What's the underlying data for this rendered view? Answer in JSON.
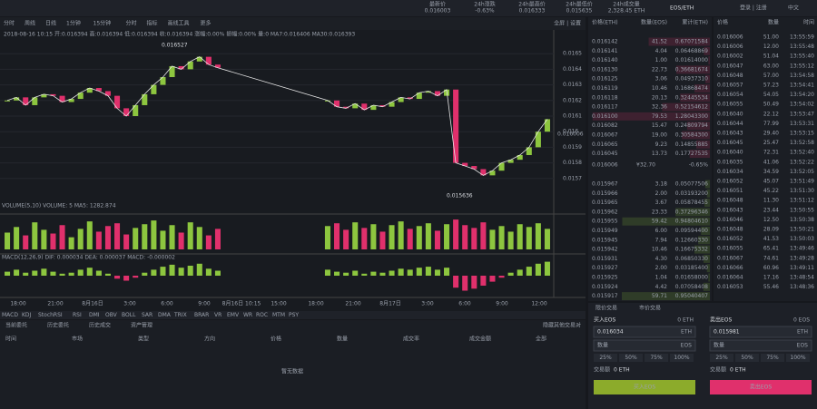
{
  "header": {
    "stats": [
      {
        "label": "最新价",
        "value": "0.016003"
      },
      {
        "label": "24h涨跌",
        "value": "-0.63%"
      },
      {
        "label": "24h最高价",
        "value": "0.016333"
      },
      {
        "label": "24h最低价",
        "value": "0.015635"
      },
      {
        "label": "24h成交量",
        "value": "2,328.45 ETH"
      }
    ],
    "pair": "EOS/ETH",
    "login": "登录 | 注册",
    "lang": "中文"
  },
  "toolbar": {
    "items": [
      "分时",
      "周线",
      "日线",
      "1分钟",
      "15分钟",
      "分时",
      "指标",
      "画线工具",
      "更多"
    ],
    "right": "全屏 | 设置"
  },
  "chart_data": {
    "type": "candlestick",
    "info": "2018-08-16 10:15 开:0.016394 高:0.016394 低:0.016394 收:0.016394 涨幅:0.00% 振幅:0.00% 量:0 MA7:0.016406 MA30:0.016393",
    "closes": [
      0.0162,
      0.01622,
      0.01617,
      0.01622,
      0.01624,
      0.01623,
      0.01619,
      0.01621,
      0.01625,
      0.01628,
      0.01626,
      0.01623,
      0.01615,
      0.0161,
      0.01617,
      0.01624,
      0.0163,
      0.01635,
      0.01642,
      0.0164,
      0.01645,
      0.01648,
      0.01643,
      0.01641,
      null,
      null,
      null,
      null,
      null,
      null,
      null,
      null,
      null,
      null,
      null,
      0.0162,
      0.01616,
      0.01615,
      0.01618,
      0.01614,
      0.01617,
      0.01616,
      0.01619,
      0.01622,
      0.01621,
      0.01625,
      0.01626,
      0.01623,
      0.01627,
      0.0158,
      0.01578,
      0.01576,
      0.01572,
      0.01575,
      0.0158,
      0.01582,
      0.01585,
      0.0159,
      0.016,
      0.01608
    ],
    "volumes": [
      1800,
      2400,
      1500,
      2900,
      2100,
      1700,
      2600,
      1300,
      2200,
      3000,
      1900,
      2500,
      2800,
      1600,
      2300,
      2700,
      3100,
      2000,
      2600,
      1800,
      2900,
      2400,
      1500,
      2200,
      null,
      null,
      null,
      null,
      null,
      null,
      null,
      null,
      null,
      null,
      null,
      2500,
      2800,
      2100,
      2900,
      2300,
      2700,
      1900,
      2600,
      3000,
      2200,
      2500,
      2800,
      2000,
      2700,
      3200,
      2600,
      2300,
      2900,
      2100,
      2500,
      1900,
      2700,
      2400,
      2800,
      2200
    ],
    "macd": [
      4e-05,
      6e-05,
      3e-05,
      5e-05,
      7e-05,
      4e-05,
      2e-05,
      3e-05,
      6e-05,
      8e-05,
      5e-05,
      2e-05,
      -3e-05,
      -5e-05,
      -2e-05,
      3e-05,
      6e-05,
      9e-05,
      0.00011,
      8e-05,
      0.0001,
      0.00012,
      7e-05,
      5e-05,
      null,
      null,
      null,
      null,
      null,
      null,
      null,
      null,
      null,
      null,
      null,
      6e-05,
      4e-05,
      3e-05,
      5e-05,
      2e-05,
      4e-05,
      3e-05,
      5e-05,
      7e-05,
      6e-05,
      8e-05,
      9e-05,
      6e-05,
      8e-05,
      -0.00012,
      -0.00015,
      -0.00013,
      -0.0001,
      -6e-05,
      -2e-05,
      3e-05,
      6e-05,
      9e-05,
      0.00012,
      0.00014
    ],
    "ylim": [
      0.0156,
      0.0166
    ],
    "yticks": [
      0.0157,
      0.0158,
      0.0159,
      0.016,
      0.0161,
      0.0162,
      0.0163,
      0.0164,
      0.0165
    ],
    "volume_ylim": [
      0,
      3500
    ],
    "macd_ylim": [
      -0.0002,
      0.0002
    ],
    "up_color": "#8dc63f",
    "down_color": "#e0306c",
    "line_color": "#e8e8e8",
    "high_label": "0.016527",
    "low_label": "0.015636",
    "last_label": "0.016006",
    "volume_info": "VOLUME(5,10) VOLUME: 5 MA5: 1282.874",
    "macd_info": "MACD(12,26,9) DIF: 0.000034 DEA: 0.000037 MACD: -0.000002",
    "x_labels": [
      "18:00",
      "21:00",
      "8月16日",
      "3:00",
      "6:00",
      "9:00",
      "8月16日 10:15",
      "15:00",
      "18:00",
      "21:00",
      "8月17日",
      "3:00",
      "6:00",
      "9:00",
      "12:00"
    ]
  },
  "indicators": [
    "MACD",
    "KDJ",
    "StochRSI",
    "RSI",
    "DMI",
    "OBV",
    "BOLL",
    "SAR",
    "DMA",
    "TRIX",
    "BRAR",
    "VR",
    "EMV",
    "WR",
    "ROC",
    "MTM",
    "PSY"
  ],
  "orders": {
    "tabs": [
      "当前委托",
      "历史委托",
      "历史成交",
      "资产管理"
    ],
    "hide": "隐藏其他交易对",
    "columns": [
      "时间",
      "市场",
      "类型",
      "方向",
      "价格",
      "数量",
      "成交率",
      "成交金额",
      "全部"
    ],
    "empty": "暂无数据"
  },
  "order_book": {
    "headers": [
      "价格(ETH)",
      "数量(EOS)",
      "累计(ETH)"
    ],
    "asks": [
      [
        "0.016142",
        "41.52",
        "0.67071584"
      ],
      [
        "0.016141",
        "4.04",
        "0.06468869"
      ],
      [
        "0.016140",
        "1.00",
        "0.01614000"
      ],
      [
        "0.016130",
        "22.73",
        "0.36681674"
      ],
      [
        "0.016125",
        "3.06",
        "0.04937310"
      ],
      [
        "0.016119",
        "10.46",
        "0.16868474"
      ],
      [
        "0.016118",
        "20.13",
        "0.32445534"
      ],
      [
        "0.016117",
        "32.36",
        "0.52154612"
      ],
      [
        "0.016100",
        "79.53",
        "1.28043300"
      ],
      [
        "0.016082",
        "15.47",
        "0.24809794"
      ],
      [
        "0.016067",
        "19.00",
        "0.30584300"
      ],
      [
        "0.016065",
        "9.23",
        "0.14855885"
      ],
      [
        "0.016045",
        "13.73",
        "0.17727535"
      ]
    ],
    "last_price": "0.016006",
    "last_cny": "¥32.70",
    "last_change": "-0.65%",
    "bids": [
      [
        "0.015967",
        "3.18",
        "0.05077506"
      ],
      [
        "0.015966",
        "2.00",
        "0.03193200"
      ],
      [
        "0.015965",
        "3.67",
        "0.05878455"
      ],
      [
        "0.015962",
        "23.33",
        "0.37296346"
      ],
      [
        "0.015955",
        "59.42",
        "0.94804610"
      ],
      [
        "0.015949",
        "6.00",
        "0.09594400"
      ],
      [
        "0.015945",
        "7.94",
        "0.12660330"
      ],
      [
        "0.015942",
        "10.46",
        "0.16675332"
      ],
      [
        "0.015931",
        "4.30",
        "0.06850330"
      ],
      [
        "0.015927",
        "2.00",
        "0.03185400"
      ],
      [
        "0.015925",
        "1.04",
        "0.01658000"
      ],
      [
        "0.015924",
        "4.42",
        "0.07058408"
      ],
      [
        "0.015917",
        "59.71",
        "0.95040407"
      ]
    ],
    "ask_color": "#e0306c",
    "bid_color": "#8dc63f"
  },
  "trades": {
    "headers": [
      "价格",
      "数量",
      "时间"
    ],
    "rows": [
      {
        "price": "0.016006",
        "amount": "51.00",
        "time": "13:55:59",
        "color": "#8dc63f"
      },
      {
        "price": "0.016006",
        "amount": "12.00",
        "time": "13:55:48",
        "color": "#8dc63f"
      },
      {
        "price": "0.016002",
        "amount": "51.04",
        "time": "13:55:40",
        "color": "#e0306c"
      },
      {
        "price": "0.016047",
        "amount": "63.00",
        "time": "13:55:12",
        "color": "#8dc63f"
      },
      {
        "price": "0.016048",
        "amount": "57.00",
        "time": "13:54:58",
        "color": "#8dc63f"
      },
      {
        "price": "0.016057",
        "amount": "57.23",
        "time": "13:54:41",
        "color": "#8dc63f"
      },
      {
        "price": "0.016054",
        "amount": "54.05",
        "time": "13:54:20",
        "color": "#e0306c"
      },
      {
        "price": "0.016055",
        "amount": "50.49",
        "time": "13:54:02",
        "color": "#8dc63f"
      },
      {
        "price": "0.016040",
        "amount": "22.12",
        "time": "13:53:47",
        "color": "#e0306c"
      },
      {
        "price": "0.016044",
        "amount": "77.99",
        "time": "13:53:31",
        "color": "#8dc63f"
      },
      {
        "price": "0.016043",
        "amount": "29.40",
        "time": "13:53:15",
        "color": "#e0306c"
      },
      {
        "price": "0.016045",
        "amount": "25.47",
        "time": "13:52:58",
        "color": "#8dc63f"
      },
      {
        "price": "0.016040",
        "amount": "72.31",
        "time": "13:52:40",
        "color": "#e0306c"
      },
      {
        "price": "0.016035",
        "amount": "41.06",
        "time": "13:52:22",
        "color": "#8dc63f"
      },
      {
        "price": "0.016034",
        "amount": "34.59",
        "time": "13:52:05",
        "color": "#e0306c"
      },
      {
        "price": "0.016052",
        "amount": "45.07",
        "time": "13:51:49",
        "color": "#e0306c"
      },
      {
        "price": "0.016051",
        "amount": "45.22",
        "time": "13:51:30",
        "color": "#8dc63f"
      },
      {
        "price": "0.016048",
        "amount": "11.30",
        "time": "13:51:12",
        "color": "#8dc63f"
      },
      {
        "price": "0.016043",
        "amount": "23.44",
        "time": "13:50:55",
        "color": "#8dc63f"
      },
      {
        "price": "0.016046",
        "amount": "12.50",
        "time": "13:50:38",
        "color": "#e0306c"
      },
      {
        "price": "0.016048",
        "amount": "28.09",
        "time": "13:50:21",
        "color": "#8dc63f"
      },
      {
        "price": "0.016052",
        "amount": "41.53",
        "time": "13:50:03",
        "color": "#e0306c"
      },
      {
        "price": "0.016055",
        "amount": "65.41",
        "time": "13:49:46",
        "color": "#8dc63f"
      },
      {
        "price": "0.016067",
        "amount": "74.61",
        "time": "13:49:28",
        "color": "#e0306c"
      },
      {
        "price": "0.016066",
        "amount": "60.96",
        "time": "13:49:11",
        "color": "#8dc63f"
      },
      {
        "price": "0.016064",
        "amount": "17.16",
        "time": "13:48:54",
        "color": "#e0306c"
      },
      {
        "price": "0.016053",
        "amount": "55.46",
        "time": "13:48:36",
        "color": "#8dc63f"
      }
    ]
  },
  "trade_form": {
    "tabs": [
      "限价交易",
      "市价交易"
    ],
    "buy": {
      "title": "买入EOS",
      "balance": "0 ETH",
      "price": "0.016034",
      "price_unit": "ETH",
      "amount": "数量",
      "amount_unit": "EOS",
      "percents": [
        "25%",
        "50%",
        "75%",
        "100%"
      ],
      "total_label": "交易额",
      "total": "0 ETH",
      "button": "买入EOS",
      "color": "#8cab2b"
    },
    "sell": {
      "title": "卖出EOS",
      "balance": "0 EOS",
      "price": "0.015981",
      "price_unit": "ETH",
      "amount": "数量",
      "amount_unit": "EOS",
      "percents": [
        "25%",
        "50%",
        "75%",
        "100%"
      ],
      "total_label": "交易额",
      "total": "0 ETH",
      "button": "卖出EOS",
      "color": "#e0306c"
    }
  }
}
